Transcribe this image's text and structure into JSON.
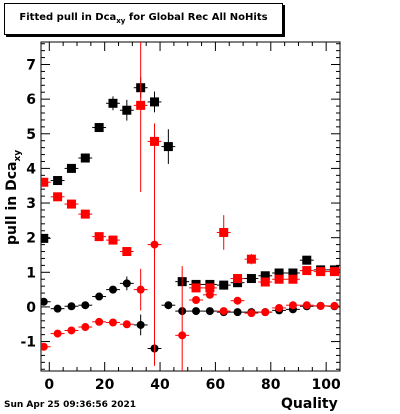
{
  "title": {
    "main": "Fitted pull in Dca",
    "sub": "xy",
    "rest": " for Global Rec All NoHits"
  },
  "datestamp": "Sun Apr 25 09:36:56 2021",
  "chart_data": {
    "type": "scatter",
    "title": "Fitted pull in Dca_xy for Global Rec All NoHits",
    "xlabel": "Quality",
    "ylabel": "pull in Dca_xy",
    "xlim": [
      -3,
      105
    ],
    "ylim": [
      -1.85,
      7.65
    ],
    "xticks": [
      0,
      20,
      40,
      60,
      80,
      100
    ],
    "yticks": [
      -1,
      0,
      1,
      2,
      3,
      4,
      5,
      6,
      7
    ],
    "grid": false,
    "series": [
      {
        "marker": "square",
        "color": "#000000",
        "points": [
          [
            -2,
            1.98,
            0.1
          ],
          [
            3,
            3.65,
            0.1
          ],
          [
            8,
            4.0,
            0.1
          ],
          [
            13,
            4.3,
            0.12
          ],
          [
            18,
            5.18,
            0.12
          ],
          [
            23,
            5.88,
            0.2
          ],
          [
            28,
            5.68,
            0.3
          ],
          [
            33,
            6.33,
            0.3
          ],
          [
            38,
            5.92,
            0.3
          ],
          [
            43,
            4.63,
            0.5
          ],
          [
            48,
            0.73,
            0.1
          ],
          [
            53,
            0.65,
            0.1
          ],
          [
            58,
            0.65,
            0.1
          ],
          [
            63,
            0.63,
            0.1
          ],
          [
            68,
            0.7,
            0.1
          ],
          [
            73,
            0.82,
            0.1
          ],
          [
            78,
            0.9,
            0.1
          ],
          [
            83,
            0.98,
            0.1
          ],
          [
            88,
            0.98,
            0.1
          ],
          [
            93,
            1.35,
            0.1
          ],
          [
            98,
            1.07,
            0.1
          ],
          [
            103,
            1.07,
            0.1
          ]
        ]
      },
      {
        "marker": "square",
        "color": "#ff0000",
        "points": [
          [
            -2,
            3.6,
            0.1
          ],
          [
            3,
            3.18,
            0.1
          ],
          [
            8,
            2.97,
            0.1
          ],
          [
            13,
            2.68,
            0.1
          ],
          [
            18,
            2.03,
            0.1
          ],
          [
            23,
            1.93,
            0.1
          ],
          [
            28,
            1.6,
            0.1
          ],
          [
            33,
            5.82,
            2.5
          ],
          [
            38,
            4.78,
            0.1
          ],
          [
            53,
            0.55,
            0.1
          ],
          [
            58,
            0.55,
            0.1
          ],
          [
            63,
            2.15,
            0.5
          ],
          [
            68,
            0.82,
            0.1
          ],
          [
            73,
            1.38,
            0.15
          ],
          [
            78,
            0.72,
            0.1
          ],
          [
            83,
            0.8,
            0.1
          ],
          [
            88,
            0.8,
            0.1
          ],
          [
            93,
            1.05,
            0.1
          ],
          [
            98,
            1.02,
            0.1
          ],
          [
            103,
            1.02,
            0.1
          ]
        ]
      },
      {
        "marker": "circle",
        "color": "#000000",
        "points": [
          [
            -2,
            0.15,
            0.1
          ],
          [
            3,
            -0.05,
            0.1
          ],
          [
            8,
            0.02,
            0.1
          ],
          [
            13,
            0.05,
            0.1
          ],
          [
            18,
            0.3,
            0.1
          ],
          [
            23,
            0.5,
            0.1
          ],
          [
            28,
            0.68,
            0.2
          ],
          [
            33,
            -0.52,
            0.3
          ],
          [
            38,
            -1.2,
            0.1
          ],
          [
            43,
            0.05,
            0.1
          ],
          [
            48,
            -0.12,
            0.1
          ],
          [
            53,
            -0.12,
            0.1
          ],
          [
            58,
            -0.12,
            0.1
          ],
          [
            63,
            -0.15,
            0.1
          ],
          [
            68,
            -0.15,
            0.1
          ],
          [
            73,
            -0.15,
            0.1
          ],
          [
            78,
            -0.15,
            0.1
          ],
          [
            83,
            -0.1,
            0.1
          ],
          [
            88,
            -0.07,
            0.1
          ],
          [
            93,
            0.02,
            0.1
          ],
          [
            98,
            0.03,
            0.1
          ],
          [
            103,
            0.02,
            0.1
          ]
        ]
      },
      {
        "marker": "circle",
        "color": "#ff0000",
        "points": [
          [
            -2,
            -1.15,
            0.1
          ],
          [
            3,
            -0.77,
            0.1
          ],
          [
            8,
            -0.68,
            0.1
          ],
          [
            13,
            -0.58,
            0.1
          ],
          [
            18,
            -0.43,
            0.1
          ],
          [
            23,
            -0.45,
            0.1
          ],
          [
            28,
            -0.5,
            0.1
          ],
          [
            33,
            0.5,
            0.6
          ],
          [
            38,
            1.8,
            3.5
          ],
          [
            48,
            -0.82,
            2.0
          ],
          [
            53,
            0.2,
            0.1
          ],
          [
            58,
            0.35,
            0.1
          ],
          [
            63,
            -0.12,
            0.1
          ],
          [
            68,
            0.18,
            0.1
          ],
          [
            73,
            -0.18,
            0.1
          ],
          [
            78,
            -0.15,
            0.1
          ],
          [
            83,
            -0.03,
            0.1
          ],
          [
            88,
            0.05,
            0.1
          ],
          [
            93,
            0.05,
            0.1
          ],
          [
            98,
            0.03,
            0.1
          ],
          [
            103,
            0.03,
            0.1
          ]
        ]
      }
    ]
  }
}
